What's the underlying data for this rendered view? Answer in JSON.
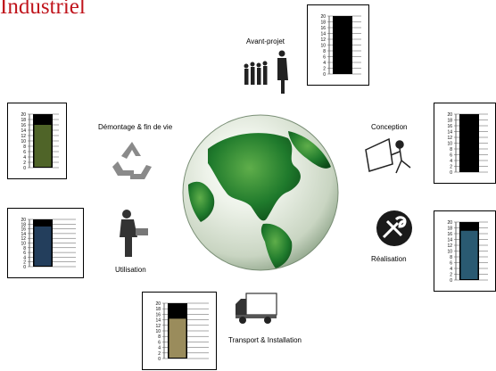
{
  "header": {
    "title": "Industriel"
  },
  "phases": [
    {
      "id": "avant-projet",
      "label": "Avant-projet",
      "level": 1.0,
      "color": "#000000"
    },
    {
      "id": "conception",
      "label": "Conception",
      "level": 1.0,
      "color": "#000000"
    },
    {
      "id": "realisation",
      "label": "Réalisation",
      "level": 0.85,
      "color": "#2a5a72"
    },
    {
      "id": "transport",
      "label": "Transport & Installation",
      "level": 0.72,
      "color": "#9a8c5c"
    },
    {
      "id": "utilisation",
      "label": "Utilisation",
      "level": 0.85,
      "color": "#233e5c"
    },
    {
      "id": "demontage",
      "label": "Démontage & fin de vie",
      "level": 0.8,
      "color": "#4f6428"
    }
  ],
  "gauge_scale": [
    "20",
    "18",
    "16",
    "14",
    "12",
    "10",
    "8",
    "6",
    "4",
    "2",
    "0"
  ],
  "icons": {
    "avant-projet": "business-people-icon",
    "conception": "designer-at-desk-icon",
    "realisation": "tools-icon",
    "transport": "delivery-truck-icon",
    "utilisation": "person-using-machine-icon",
    "demontage": "recycle-icon",
    "center": "earth-globe-icon"
  }
}
